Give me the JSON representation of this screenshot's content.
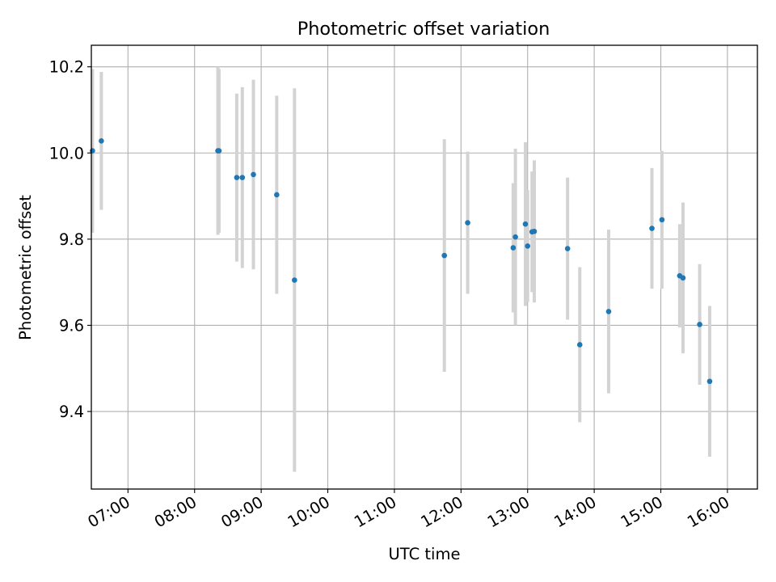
{
  "chart_data": {
    "type": "scatter",
    "title": "Photometric offset variation",
    "xlabel": "UTC time",
    "ylabel": "Photometric offset",
    "x_unit": "hours (UTC)",
    "xlim": [
      "06:27",
      "16:27"
    ],
    "ylim": [
      9.22,
      10.25
    ],
    "x_ticks": [
      "07:00",
      "08:00",
      "09:00",
      "10:00",
      "11:00",
      "12:00",
      "13:00",
      "14:00",
      "15:00",
      "16:00"
    ],
    "y_ticks": [
      9.4,
      9.6,
      9.8,
      10.0,
      10.2
    ],
    "grid": true,
    "point_color": "#1f77b4",
    "errorbar_color": "#d3d3d3",
    "series": [
      {
        "points": [
          {
            "t": "06:28",
            "y": 10.005,
            "err": 0.19
          },
          {
            "t": "06:36",
            "y": 10.028,
            "err": 0.16
          },
          {
            "t": "08:21",
            "y": 10.005,
            "err": 0.195
          },
          {
            "t": "08:22",
            "y": 10.005,
            "err": 0.19
          },
          {
            "t": "08:38",
            "y": 9.943,
            "err": 0.195
          },
          {
            "t": "08:43",
            "y": 9.943,
            "err": 0.21
          },
          {
            "t": "08:53",
            "y": 9.95,
            "err": 0.22
          },
          {
            "t": "09:14",
            "y": 9.903,
            "err": 0.23
          },
          {
            "t": "09:30",
            "y": 9.705,
            "err": 0.445
          },
          {
            "t": "11:45",
            "y": 9.762,
            "err": 0.27
          },
          {
            "t": "12:06",
            "y": 9.838,
            "err": 0.165
          },
          {
            "t": "12:47",
            "y": 9.78,
            "err": 0.15
          },
          {
            "t": "12:49",
            "y": 9.805,
            "err": 0.205
          },
          {
            "t": "12:58",
            "y": 9.835,
            "err": 0.19
          },
          {
            "t": "13:00",
            "y": 9.784,
            "err": 0.13
          },
          {
            "t": "13:04",
            "y": 9.817,
            "err": 0.14
          },
          {
            "t": "13:06",
            "y": 9.818,
            "err": 0.165
          },
          {
            "t": "13:36",
            "y": 9.778,
            "err": 0.165
          },
          {
            "t": "13:47",
            "y": 9.555,
            "err": 0.18
          },
          {
            "t": "14:13",
            "y": 9.632,
            "err": 0.19
          },
          {
            "t": "14:52",
            "y": 9.825,
            "err": 0.14
          },
          {
            "t": "15:01",
            "y": 9.845,
            "err": 0.16
          },
          {
            "t": "15:17",
            "y": 9.715,
            "err": 0.12
          },
          {
            "t": "15:20",
            "y": 9.71,
            "err": 0.175
          },
          {
            "t": "15:35",
            "y": 9.602,
            "err": 0.14
          },
          {
            "t": "15:44",
            "y": 9.47,
            "err": 0.175
          }
        ]
      }
    ]
  }
}
